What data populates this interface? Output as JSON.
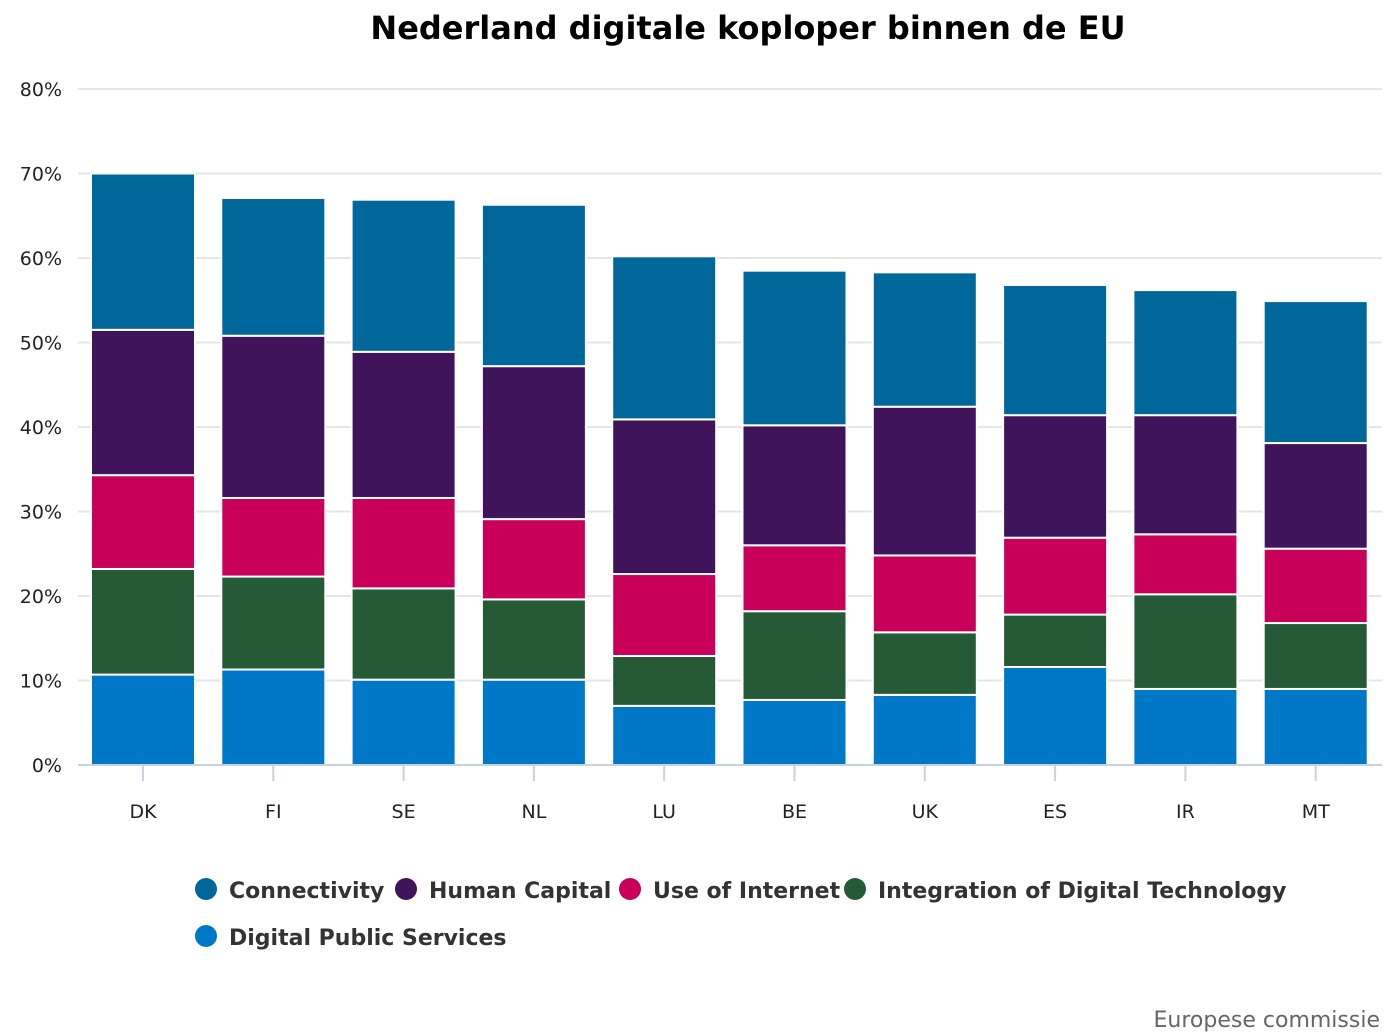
{
  "chart_data": {
    "type": "bar",
    "stacked": true,
    "title": "Nederland digitale koploper binnen de EU",
    "credit": "Europese commissie",
    "xlabel": "",
    "ylabel": "",
    "ylim": [
      0,
      80
    ],
    "yticks": [
      0,
      10,
      20,
      30,
      40,
      50,
      60,
      70,
      80
    ],
    "ytick_labels": [
      "0%",
      "10%",
      "20%",
      "30%",
      "40%",
      "50%",
      "60%",
      "70%",
      "80%"
    ],
    "grid": true,
    "legend_position": "bottom",
    "categories": [
      "DK",
      "FI",
      "SE",
      "NL",
      "LU",
      "BE",
      "UK",
      "ES",
      "IR",
      "MT"
    ],
    "series": [
      {
        "name": "Digital Public Services",
        "color": "#0078c8",
        "values": [
          10.7,
          11.3,
          10.1,
          10.1,
          7.0,
          7.7,
          8.3,
          11.6,
          9.0,
          9.0
        ]
      },
      {
        "name": "Integration of Digital Technology",
        "color": "#265a36",
        "values": [
          12.5,
          11.0,
          10.8,
          9.5,
          5.9,
          10.5,
          7.4,
          6.2,
          11.2,
          7.8
        ]
      },
      {
        "name": "Use of Internet",
        "color": "#c8005a",
        "values": [
          11.1,
          9.3,
          10.7,
          9.5,
          9.7,
          7.8,
          9.1,
          9.1,
          7.1,
          8.8
        ]
      },
      {
        "name": "Human Capital",
        "color": "#40145a",
        "values": [
          17.2,
          19.2,
          17.3,
          18.1,
          18.3,
          14.2,
          17.6,
          14.5,
          14.1,
          12.5
        ]
      },
      {
        "name": "Connectivity",
        "color": "#00679b",
        "values": [
          18.5,
          16.3,
          18.0,
          19.1,
          19.3,
          18.3,
          15.9,
          15.4,
          14.8,
          16.8
        ]
      }
    ],
    "legend_order": [
      "Connectivity",
      "Human Capital",
      "Use of Internet",
      "Integration of Digital Technology",
      "Digital Public Services"
    ]
  }
}
